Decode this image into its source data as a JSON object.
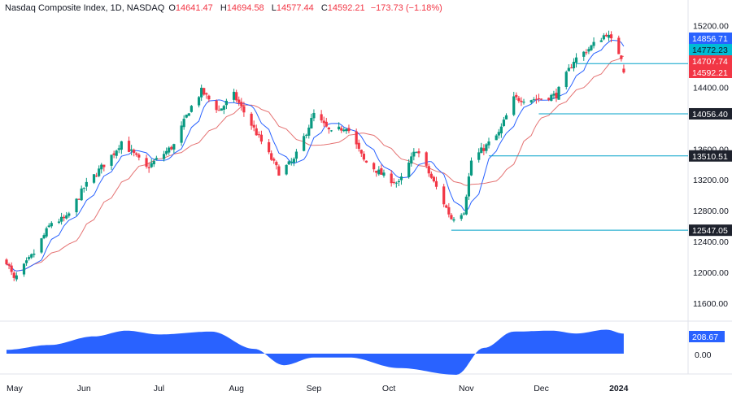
{
  "header": {
    "title": "Nasdaq Composite Index, 1D, NASDAQ",
    "open_label": "O",
    "open": "14641.47",
    "high_label": "H",
    "high": "14694.58",
    "low_label": "L",
    "low": "14577.44",
    "close_label": "C",
    "close": "14592.21",
    "change": "−173.73 (−1.18%)"
  },
  "colors": {
    "up": "#089981",
    "down": "#f23645",
    "ma_fast": "#2962ff",
    "ma_slow": "#e57373",
    "level_line": "#00a0c8",
    "level_tag": "#1e222d",
    "oscillator": "#2962ff",
    "tag_blue": "#2962ff",
    "tag_cyan": "#00bcd4",
    "tag_red": "#f23645"
  },
  "chart_data": {
    "type": "candlestick",
    "title": "Nasdaq Composite Index, 1D, NASDAQ",
    "y_ticks": [
      "15200.00",
      "14400.00",
      "13600.00",
      "13200.00",
      "12800.00",
      "12400.00",
      "12000.00",
      "11600.00"
    ],
    "ylim": [
      11400,
      15300
    ],
    "x_ticks": [
      "May",
      "Jun",
      "Jul",
      "Aug",
      "Sep",
      "Oct",
      "Nov",
      "Dec",
      "2024"
    ],
    "x_tick_dates": [
      "2023-05-01",
      "2023-06-01",
      "2023-07-01",
      "2023-08-01",
      "2023-09-01",
      "2023-10-01",
      "2023-11-01",
      "2023-12-01",
      "2024-01-01"
    ],
    "xlim": [
      "2023-05-01",
      "2024-01-04"
    ],
    "price_anchors": [
      [
        "2023-05-01",
        12150
      ],
      [
        "2023-05-04",
        11900
      ],
      [
        "2023-05-12",
        12250
      ],
      [
        "2023-05-19",
        12650
      ],
      [
        "2023-05-25",
        12700
      ],
      [
        "2023-06-01",
        13100
      ],
      [
        "2023-06-13",
        13550
      ],
      [
        "2023-06-16",
        13700
      ],
      [
        "2023-06-26",
        13350
      ],
      [
        "2023-07-07",
        13650
      ],
      [
        "2023-07-13",
        14100
      ],
      [
        "2023-07-18",
        14350
      ],
      [
        "2023-07-25",
        14100
      ],
      [
        "2023-07-31",
        14300
      ],
      [
        "2023-08-10",
        13750
      ],
      [
        "2023-08-18",
        13300
      ],
      [
        "2023-08-24",
        13450
      ],
      [
        "2023-09-01",
        14050
      ],
      [
        "2023-09-08",
        13800
      ],
      [
        "2023-09-14",
        13900
      ],
      [
        "2023-09-21",
        13450
      ],
      [
        "2023-09-29",
        13250
      ],
      [
        "2023-10-05",
        13150
      ],
      [
        "2023-10-12",
        13600
      ],
      [
        "2023-10-20",
        13100
      ],
      [
        "2023-10-26",
        12700
      ],
      [
        "2023-10-31",
        12800
      ],
      [
        "2023-11-03",
        13450
      ],
      [
        "2023-11-14",
        13800
      ],
      [
        "2023-11-20",
        14250
      ],
      [
        "2023-11-30",
        14250
      ],
      [
        "2023-12-07",
        14300
      ],
      [
        "2023-12-14",
        14750
      ],
      [
        "2023-12-20",
        14900
      ],
      [
        "2023-12-27",
        15100
      ],
      [
        "2024-01-02",
        14800
      ],
      [
        "2024-01-03",
        14592
      ]
    ],
    "series": [
      {
        "name": "",
        "role": "moving-average-fast"
      },
      {
        "name": "",
        "role": "moving-average-slow"
      }
    ],
    "levels": [
      {
        "value": 14707.74,
        "label": "14707.74",
        "from": "2023-12-15"
      },
      {
        "value": 14056.4,
        "label": "14056.40",
        "from": "2023-11-30"
      },
      {
        "value": 13510.51,
        "label": "13510.51",
        "from": "2023-11-10"
      },
      {
        "value": 12547.05,
        "label": "12547.05",
        "from": "2023-10-26"
      }
    ],
    "price_tags": [
      {
        "value": 14856.71,
        "label": "14856.71",
        "color": "tag_blue"
      },
      {
        "value": 14772.23,
        "label": "14772.23",
        "color": "tag_cyan"
      },
      {
        "value": 14707.74,
        "label": "14707.74",
        "color": "tag_red"
      },
      {
        "value": 14592.21,
        "label": "14592.21",
        "color": "tag_red"
      }
    ],
    "oscillator": {
      "tick_labels": [
        "0.00"
      ],
      "value_label": "208.67",
      "anchors": [
        [
          "2023-05-01",
          40
        ],
        [
          "2023-05-18",
          90
        ],
        [
          "2023-06-05",
          180
        ],
        [
          "2023-06-18",
          240
        ],
        [
          "2023-07-01",
          200
        ],
        [
          "2023-07-22",
          230
        ],
        [
          "2023-08-08",
          50
        ],
        [
          "2023-08-20",
          -120
        ],
        [
          "2023-09-01",
          -40
        ],
        [
          "2023-09-15",
          -40
        ],
        [
          "2023-10-05",
          -150
        ],
        [
          "2023-10-28",
          -220
        ],
        [
          "2023-11-08",
          60
        ],
        [
          "2023-11-20",
          230
        ],
        [
          "2023-12-05",
          240
        ],
        [
          "2023-12-15",
          210
        ],
        [
          "2023-12-27",
          250
        ],
        [
          "2024-01-03",
          208.67
        ]
      ]
    }
  }
}
